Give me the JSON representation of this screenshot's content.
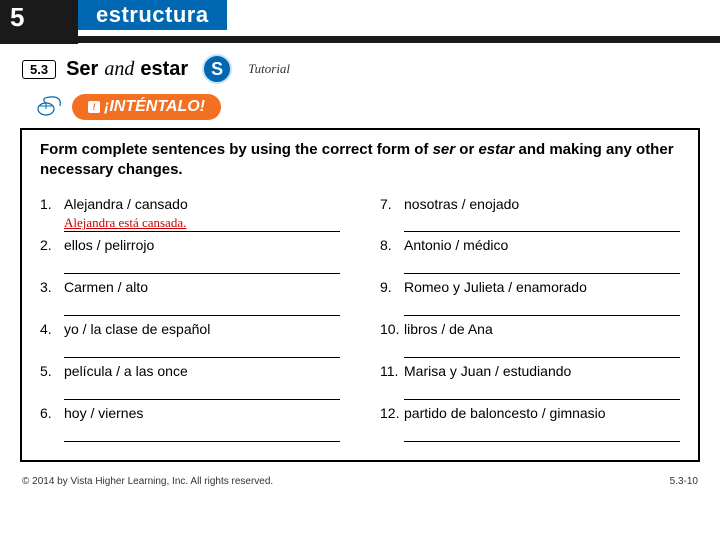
{
  "colors": {
    "blue": "#0068b3",
    "orange": "#f36f21",
    "black": "#1a1a1a",
    "answer_red": "#cc0000"
  },
  "header": {
    "chapter": "5",
    "band_label": "estructura"
  },
  "subheader": {
    "section_num": "5.3",
    "title_bold1": "Ser",
    "title_and": "and",
    "title_bold2": "estar",
    "badge": "S",
    "tutorial": "Tutorial"
  },
  "intentalo": {
    "label": "¡INTÉNTALO!"
  },
  "instructions_parts": {
    "p1": "Form complete sentences by using the correct form of ",
    "i1": "ser",
    "p2": " or ",
    "i2": "estar",
    "p3": " and making any other necessary changes."
  },
  "items_left": [
    {
      "n": "1.",
      "prompt": "Alejandra / cansado",
      "answer": "Alejandra está cansada."
    },
    {
      "n": "2.",
      "prompt": "ellos / pelirrojo",
      "answer": ""
    },
    {
      "n": "3.",
      "prompt": "Carmen / alto",
      "answer": ""
    },
    {
      "n": "4.",
      "prompt": "yo / la clase de español",
      "answer": ""
    },
    {
      "n": "5.",
      "prompt": "película / a las once",
      "answer": ""
    },
    {
      "n": "6.",
      "prompt": "hoy / viernes",
      "answer": ""
    }
  ],
  "items_right": [
    {
      "n": "7.",
      "prompt": "nosotras / enojado",
      "answer": ""
    },
    {
      "n": "8.",
      "prompt": "Antonio / médico",
      "answer": ""
    },
    {
      "n": "9.",
      "prompt": "Romeo y Julieta / enamorado",
      "answer": ""
    },
    {
      "n": "10.",
      "prompt": "libros / de Ana",
      "answer": ""
    },
    {
      "n": "11.",
      "prompt": "Marisa y Juan / estudiando",
      "answer": ""
    },
    {
      "n": "12.",
      "prompt": "partido de baloncesto / gimnasio",
      "answer": ""
    }
  ],
  "footer": {
    "copyright": "© 2014 by Vista Higher Learning, Inc. All rights reserved.",
    "pageref": "5.3-10"
  }
}
